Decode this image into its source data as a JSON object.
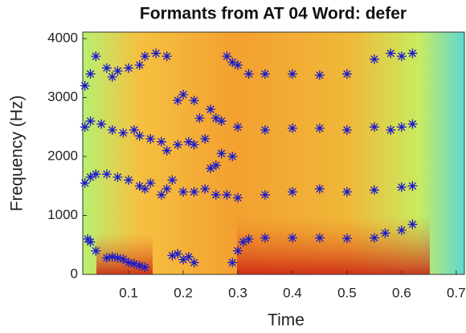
{
  "chart_data": {
    "type": "scatter",
    "title": "Formants from AT 04 Word: defer",
    "xlabel": "Time",
    "ylabel": "Frequency (Hz)",
    "xlim": [
      0.016,
      0.715
    ],
    "ylim": [
      0,
      4110
    ],
    "xticks": [
      0.1,
      0.2,
      0.3,
      0.4,
      0.5,
      0.6,
      0.7
    ],
    "yticks": [
      0,
      1000,
      2000,
      3000,
      4000
    ],
    "marker": "*",
    "series": [
      {
        "color": "#1a1acc",
        "x": [
          0.025,
          0.03,
          0.04,
          0.06,
          0.07,
          0.08,
          0.09,
          0.1,
          0.11,
          0.12,
          0.13,
          0.18,
          0.19,
          0.2,
          0.21,
          0.22,
          0.29,
          0.3,
          0.31,
          0.32,
          0.35,
          0.4,
          0.45,
          0.5,
          0.55,
          0.57,
          0.6,
          0.62
        ],
        "values": [
          600,
          550,
          400,
          280,
          300,
          280,
          260,
          200,
          180,
          150,
          120,
          320,
          350,
          250,
          300,
          200,
          200,
          400,
          550,
          600,
          620,
          620,
          620,
          610,
          620,
          700,
          750,
          850
        ]
      },
      {
        "color": "#1a1acc",
        "x": [
          0.02,
          0.03,
          0.04,
          0.06,
          0.08,
          0.1,
          0.12,
          0.13,
          0.14,
          0.16,
          0.17,
          0.18,
          0.2,
          0.22,
          0.24,
          0.26,
          0.28,
          0.3,
          0.35,
          0.4,
          0.45,
          0.5,
          0.55,
          0.6,
          0.62
        ],
        "values": [
          1550,
          1650,
          1700,
          1700,
          1650,
          1600,
          1500,
          1450,
          1550,
          1350,
          1450,
          1600,
          1400,
          1400,
          1450,
          1350,
          1350,
          1300,
          1350,
          1400,
          1450,
          1400,
          1430,
          1480,
          1500
        ]
      },
      {
        "color": "#1a1acc",
        "x": [
          0.02,
          0.03,
          0.05,
          0.07,
          0.09,
          0.11,
          0.12,
          0.14,
          0.16,
          0.17,
          0.19,
          0.21,
          0.22,
          0.24,
          0.25,
          0.26,
          0.27,
          0.29,
          0.3,
          0.35,
          0.4,
          0.45,
          0.5,
          0.55,
          0.58,
          0.6,
          0.62
        ],
        "values": [
          2500,
          2600,
          2550,
          2450,
          2400,
          2450,
          2350,
          2300,
          2250,
          2100,
          2200,
          2250,
          2200,
          2300,
          1800,
          1850,
          2050,
          2000,
          2500,
          2450,
          2480,
          2480,
          2450,
          2500,
          2450,
          2500,
          2550
        ]
      },
      {
        "color": "#1a1acc",
        "x": [
          0.02,
          0.03,
          0.04,
          0.06,
          0.07,
          0.08,
          0.1,
          0.12,
          0.13,
          0.15,
          0.17,
          0.19,
          0.2,
          0.22,
          0.23,
          0.25,
          0.26,
          0.27,
          0.28,
          0.29,
          0.3,
          0.32,
          0.35,
          0.4,
          0.45,
          0.5,
          0.55,
          0.58,
          0.6,
          0.62
        ],
        "values": [
          3200,
          3400,
          3700,
          3500,
          3350,
          3450,
          3500,
          3550,
          3700,
          3750,
          3700,
          2950,
          3050,
          2950,
          2650,
          2800,
          2650,
          2600,
          3700,
          3600,
          3550,
          3400,
          3400,
          3400,
          3380,
          3400,
          3650,
          3750,
          3700,
          3750
        ]
      }
    ]
  }
}
